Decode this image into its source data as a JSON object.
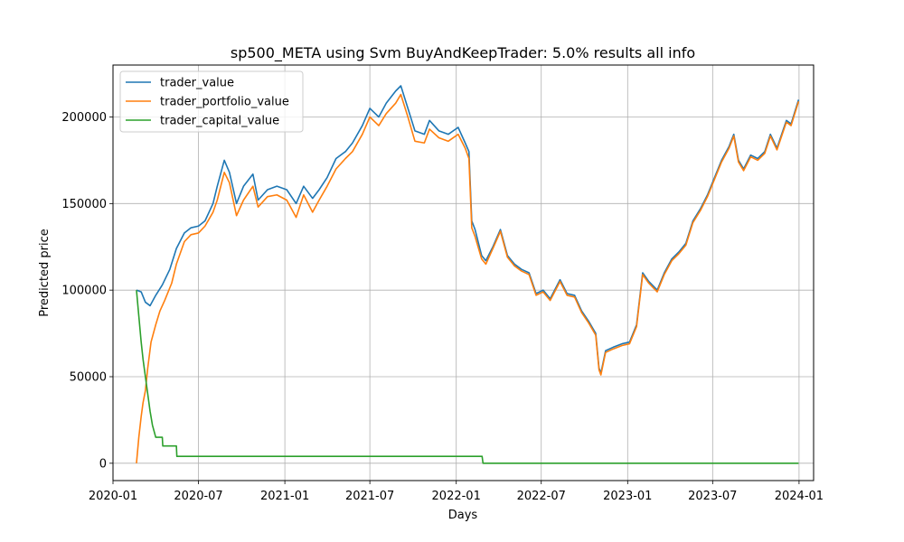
{
  "chart_data": {
    "type": "line",
    "title": "sp500_META using Svm BuyAndKeepTrader: 5.0% results all info",
    "xlabel": "Days",
    "ylabel": "Predicted price",
    "x_range": [
      "2020-01-01",
      "2024-02-01"
    ],
    "ylim": [
      -10000,
      230000
    ],
    "x_ticks": [
      {
        "date": "2020-01-01",
        "label": "2020-01"
      },
      {
        "date": "2020-07-01",
        "label": "2020-07"
      },
      {
        "date": "2021-01-01",
        "label": "2021-01"
      },
      {
        "date": "2021-07-01",
        "label": "2021-07"
      },
      {
        "date": "2022-01-01",
        "label": "2022-01"
      },
      {
        "date": "2022-07-01",
        "label": "2022-07"
      },
      {
        "date": "2023-01-01",
        "label": "2023-01"
      },
      {
        "date": "2023-07-01",
        "label": "2023-07"
      },
      {
        "date": "2024-01-01",
        "label": "2024-01"
      }
    ],
    "y_ticks": [
      {
        "value": 0,
        "label": "0"
      },
      {
        "value": 50000,
        "label": "50000"
      },
      {
        "value": 100000,
        "label": "100000"
      },
      {
        "value": 150000,
        "label": "150000"
      },
      {
        "value": 200000,
        "label": "200000"
      }
    ],
    "grid": true,
    "legend_position": "top-left",
    "series": [
      {
        "name": "trader_value",
        "color": "#1f77b4",
        "points": [
          [
            "2020-02-20",
            100000
          ],
          [
            "2020-03-01",
            99000
          ],
          [
            "2020-03-10",
            93000
          ],
          [
            "2020-03-20",
            91000
          ],
          [
            "2020-04-01",
            97000
          ],
          [
            "2020-04-15",
            103000
          ],
          [
            "2020-05-01",
            112000
          ],
          [
            "2020-05-15",
            124000
          ],
          [
            "2020-06-01",
            133000
          ],
          [
            "2020-06-15",
            136000
          ],
          [
            "2020-07-01",
            137000
          ],
          [
            "2020-07-15",
            140000
          ],
          [
            "2020-08-01",
            150000
          ],
          [
            "2020-08-10",
            160000
          ],
          [
            "2020-08-25",
            175000
          ],
          [
            "2020-09-05",
            168000
          ],
          [
            "2020-09-20",
            150000
          ],
          [
            "2020-10-05",
            160000
          ],
          [
            "2020-10-25",
            167000
          ],
          [
            "2020-11-05",
            152000
          ],
          [
            "2020-11-25",
            158000
          ],
          [
            "2020-12-15",
            160000
          ],
          [
            "2021-01-05",
            158000
          ],
          [
            "2021-01-25",
            150000
          ],
          [
            "2021-02-10",
            160000
          ],
          [
            "2021-03-01",
            153000
          ],
          [
            "2021-03-15",
            158000
          ],
          [
            "2021-04-01",
            165000
          ],
          [
            "2021-04-20",
            176000
          ],
          [
            "2021-05-10",
            180000
          ],
          [
            "2021-05-25",
            185000
          ],
          [
            "2021-06-15",
            195000
          ],
          [
            "2021-07-01",
            205000
          ],
          [
            "2021-07-20",
            200000
          ],
          [
            "2021-08-05",
            208000
          ],
          [
            "2021-08-25",
            215000
          ],
          [
            "2021-09-05",
            218000
          ],
          [
            "2021-09-20",
            205000
          ],
          [
            "2021-10-05",
            192000
          ],
          [
            "2021-10-25",
            190000
          ],
          [
            "2021-11-05",
            198000
          ],
          [
            "2021-11-25",
            192000
          ],
          [
            "2021-12-15",
            190000
          ],
          [
            "2022-01-05",
            194000
          ],
          [
            "2022-01-20",
            185000
          ],
          [
            "2022-01-28",
            180000
          ],
          [
            "2022-02-03",
            140000
          ],
          [
            "2022-02-10",
            135000
          ],
          [
            "2022-02-24",
            120000
          ],
          [
            "2022-03-05",
            117000
          ],
          [
            "2022-03-20",
            125000
          ],
          [
            "2022-04-05",
            135000
          ],
          [
            "2022-04-20",
            120000
          ],
          [
            "2022-05-05",
            115000
          ],
          [
            "2022-05-20",
            112000
          ],
          [
            "2022-06-05",
            110000
          ],
          [
            "2022-06-20",
            98000
          ],
          [
            "2022-07-05",
            100000
          ],
          [
            "2022-07-20",
            95000
          ],
          [
            "2022-08-10",
            106000
          ],
          [
            "2022-08-25",
            98000
          ],
          [
            "2022-09-10",
            97000
          ],
          [
            "2022-09-25",
            88000
          ],
          [
            "2022-10-10",
            82000
          ],
          [
            "2022-10-25",
            75000
          ],
          [
            "2022-11-01",
            55000
          ],
          [
            "2022-11-05",
            52000
          ],
          [
            "2022-11-15",
            65000
          ],
          [
            "2022-12-01",
            67000
          ],
          [
            "2022-12-20",
            69000
          ],
          [
            "2023-01-05",
            70000
          ],
          [
            "2023-01-20",
            80000
          ],
          [
            "2023-02-02",
            110000
          ],
          [
            "2023-02-15",
            105000
          ],
          [
            "2023-03-05",
            100000
          ],
          [
            "2023-03-20",
            110000
          ],
          [
            "2023-04-05",
            118000
          ],
          [
            "2023-04-20",
            122000
          ],
          [
            "2023-05-05",
            127000
          ],
          [
            "2023-05-20",
            140000
          ],
          [
            "2023-06-05",
            147000
          ],
          [
            "2023-06-20",
            155000
          ],
          [
            "2023-07-05",
            165000
          ],
          [
            "2023-07-20",
            175000
          ],
          [
            "2023-08-05",
            183000
          ],
          [
            "2023-08-15",
            190000
          ],
          [
            "2023-08-25",
            175000
          ],
          [
            "2023-09-05",
            170000
          ],
          [
            "2023-09-20",
            178000
          ],
          [
            "2023-10-05",
            176000
          ],
          [
            "2023-10-20",
            180000
          ],
          [
            "2023-11-01",
            190000
          ],
          [
            "2023-11-15",
            182000
          ],
          [
            "2023-11-25",
            190000
          ],
          [
            "2023-12-05",
            198000
          ],
          [
            "2023-12-15",
            196000
          ],
          [
            "2023-12-31",
            210000
          ]
        ]
      },
      {
        "name": "trader_portfolio_value",
        "color": "#ff7f0e",
        "points": [
          [
            "2020-02-20",
            0
          ],
          [
            "2020-02-25",
            15000
          ],
          [
            "2020-03-01",
            27000
          ],
          [
            "2020-03-05",
            35000
          ],
          [
            "2020-03-10",
            42000
          ],
          [
            "2020-03-15",
            55000
          ],
          [
            "2020-03-22",
            70000
          ],
          [
            "2020-04-01",
            80000
          ],
          [
            "2020-04-10",
            88000
          ],
          [
            "2020-04-20",
            94000
          ],
          [
            "2020-05-05",
            104000
          ],
          [
            "2020-05-15",
            115000
          ],
          [
            "2020-06-01",
            128000
          ],
          [
            "2020-06-15",
            132000
          ],
          [
            "2020-07-01",
            133000
          ],
          [
            "2020-07-15",
            137000
          ],
          [
            "2020-08-01",
            145000
          ],
          [
            "2020-08-10",
            152000
          ],
          [
            "2020-08-25",
            168000
          ],
          [
            "2020-09-05",
            162000
          ],
          [
            "2020-09-20",
            143000
          ],
          [
            "2020-10-05",
            152000
          ],
          [
            "2020-10-25",
            160000
          ],
          [
            "2020-11-05",
            148000
          ],
          [
            "2020-11-25",
            154000
          ],
          [
            "2020-12-15",
            155000
          ],
          [
            "2021-01-05",
            152000
          ],
          [
            "2021-01-25",
            142000
          ],
          [
            "2021-02-10",
            155000
          ],
          [
            "2021-03-01",
            145000
          ],
          [
            "2021-03-15",
            152000
          ],
          [
            "2021-04-01",
            160000
          ],
          [
            "2021-04-20",
            170000
          ],
          [
            "2021-05-10",
            176000
          ],
          [
            "2021-05-25",
            180000
          ],
          [
            "2021-06-15",
            190000
          ],
          [
            "2021-07-01",
            200000
          ],
          [
            "2021-07-20",
            195000
          ],
          [
            "2021-08-05",
            202000
          ],
          [
            "2021-08-25",
            208000
          ],
          [
            "2021-09-05",
            213000
          ],
          [
            "2021-09-20",
            200000
          ],
          [
            "2021-10-05",
            186000
          ],
          [
            "2021-10-25",
            185000
          ],
          [
            "2021-11-05",
            193000
          ],
          [
            "2021-11-25",
            188000
          ],
          [
            "2021-12-15",
            186000
          ],
          [
            "2022-01-05",
            190000
          ],
          [
            "2022-01-20",
            182000
          ],
          [
            "2022-01-28",
            176000
          ],
          [
            "2022-02-03",
            136000
          ],
          [
            "2022-02-10",
            131000
          ],
          [
            "2022-02-24",
            118000
          ],
          [
            "2022-03-05",
            115000
          ],
          [
            "2022-03-20",
            124000
          ],
          [
            "2022-04-05",
            134000
          ],
          [
            "2022-04-20",
            119000
          ],
          [
            "2022-05-05",
            114000
          ],
          [
            "2022-05-20",
            111000
          ],
          [
            "2022-06-05",
            109000
          ],
          [
            "2022-06-20",
            97000
          ],
          [
            "2022-07-05",
            99000
          ],
          [
            "2022-07-20",
            94000
          ],
          [
            "2022-08-10",
            105000
          ],
          [
            "2022-08-25",
            97000
          ],
          [
            "2022-09-10",
            96000
          ],
          [
            "2022-09-25",
            87000
          ],
          [
            "2022-10-10",
            81000
          ],
          [
            "2022-10-25",
            74000
          ],
          [
            "2022-11-01",
            54000
          ],
          [
            "2022-11-05",
            51000
          ],
          [
            "2022-11-15",
            64000
          ],
          [
            "2022-12-01",
            66000
          ],
          [
            "2022-12-20",
            68000
          ],
          [
            "2023-01-05",
            69000
          ],
          [
            "2023-01-20",
            79000
          ],
          [
            "2023-02-02",
            109000
          ],
          [
            "2023-02-15",
            104000
          ],
          [
            "2023-03-05",
            99000
          ],
          [
            "2023-03-20",
            109000
          ],
          [
            "2023-04-05",
            117000
          ],
          [
            "2023-04-20",
            121000
          ],
          [
            "2023-05-05",
            126000
          ],
          [
            "2023-05-20",
            139000
          ],
          [
            "2023-06-05",
            146000
          ],
          [
            "2023-06-20",
            154000
          ],
          [
            "2023-07-05",
            164000
          ],
          [
            "2023-07-20",
            174000
          ],
          [
            "2023-08-05",
            182000
          ],
          [
            "2023-08-15",
            189000
          ],
          [
            "2023-08-25",
            174000
          ],
          [
            "2023-09-05",
            169000
          ],
          [
            "2023-09-20",
            177000
          ],
          [
            "2023-10-05",
            175000
          ],
          [
            "2023-10-20",
            179000
          ],
          [
            "2023-11-01",
            189000
          ],
          [
            "2023-11-15",
            181000
          ],
          [
            "2023-11-25",
            189000
          ],
          [
            "2023-12-05",
            197000
          ],
          [
            "2023-12-15",
            195000
          ],
          [
            "2023-12-31",
            209000
          ]
        ]
      },
      {
        "name": "trader_capital_value",
        "color": "#2ca02c",
        "points": [
          [
            "2020-02-20",
            100000
          ],
          [
            "2020-02-25",
            85000
          ],
          [
            "2020-03-01",
            70000
          ],
          [
            "2020-03-05",
            60000
          ],
          [
            "2020-03-10",
            50000
          ],
          [
            "2020-03-15",
            40000
          ],
          [
            "2020-03-20",
            30000
          ],
          [
            "2020-03-25",
            22000
          ],
          [
            "2020-04-01",
            15000
          ],
          [
            "2020-04-15",
            15000
          ],
          [
            "2020-04-16",
            10000
          ],
          [
            "2020-05-15",
            10000
          ],
          [
            "2020-05-16",
            4000
          ],
          [
            "2022-02-25",
            4000
          ],
          [
            "2022-02-27",
            0
          ],
          [
            "2023-12-31",
            0
          ]
        ]
      }
    ]
  }
}
